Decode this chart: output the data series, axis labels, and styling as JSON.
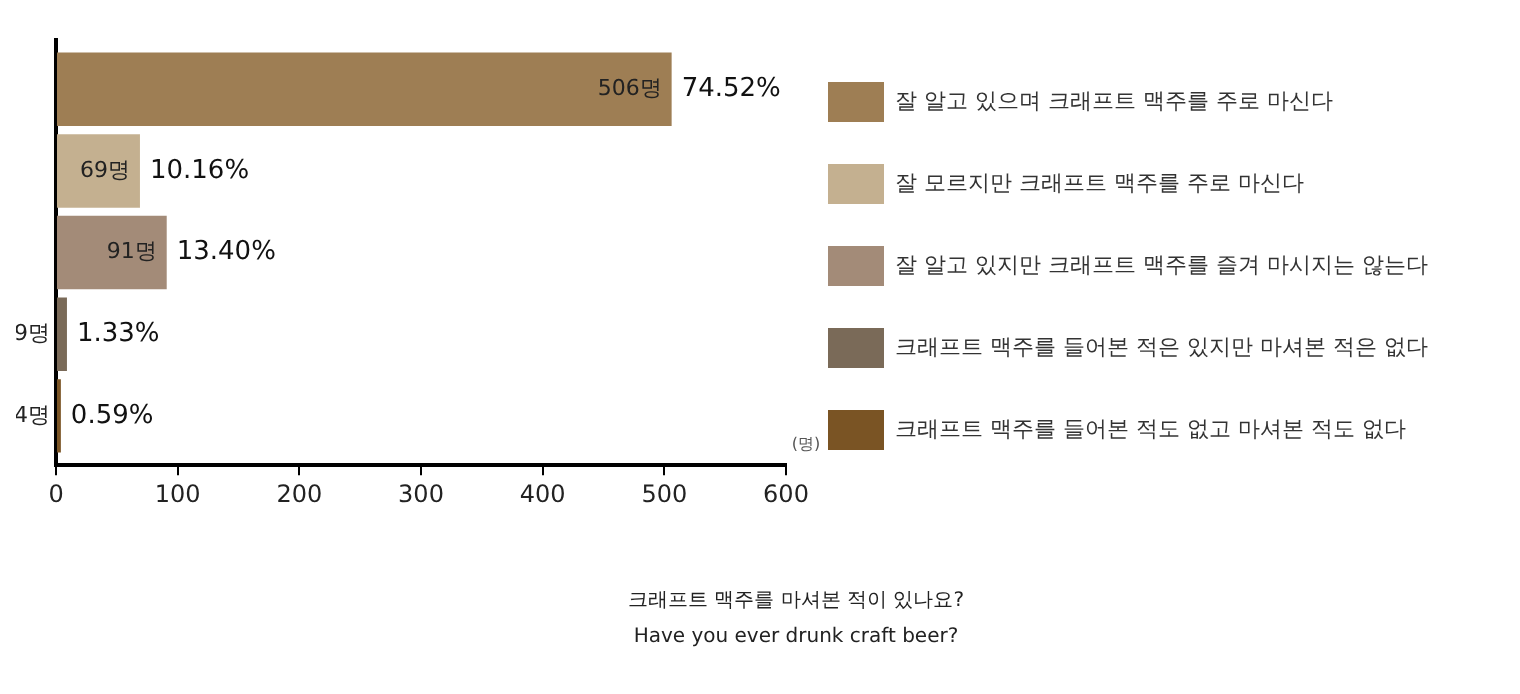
{
  "chart_data": {
    "type": "bar",
    "orientation": "horizontal",
    "title": "크래프트 맥주를 마셔본 적이 있나요?",
    "subtitle": "Have you ever drunk craft beer?",
    "xlabel": "(명)",
    "categories": [
      null
    ],
    "series": [
      {
        "name": "잘 알고 있으며 크래프트 맥주를 주로 마신다",
        "color": "#9e7e54",
        "values": [
          506
        ],
        "value_labels": [
          "506명"
        ]
      },
      {
        "name": "잘 모르지만 크래프트 맥주를 주로 마신다",
        "color": "#c4b090",
        "values": [
          69
        ],
        "value_labels": [
          "69명"
        ]
      },
      {
        "name": "잘 알고 있지만 크래프트 맥주를 즐겨 마시지는 않는다",
        "color": "#a38b78",
        "values": [
          91
        ],
        "value_labels": [
          "91명"
        ]
      },
      {
        "name": "크래프트 맥주를 들어본 적은 있지만 마셔본 적은 없다",
        "color": "#7a6a58",
        "values": [
          9
        ],
        "value_labels": [
          "9명"
        ]
      },
      {
        "name": "크래프트 맥주를 들어본 적도 없고 마셔본 적도 없다",
        "color": "#7a5424",
        "values": [
          4
        ],
        "value_labels": [
          "4명"
        ]
      }
    ],
    "annotations": [
      {
        "text": "74.52%",
        "x": 506
      },
      {
        "text": "10.16%",
        "x": 69
      },
      {
        "text": "13.40%",
        "x": 91
      },
      {
        "text": "1.33%",
        "x": 9
      },
      {
        "text": "0.59%",
        "x": 4
      }
    ],
    "xlim": [
      0,
      600
    ],
    "xticks": [
      0,
      100,
      200,
      300,
      400,
      500,
      600
    ],
    "tick_labels": "x",
    "grid": false,
    "legend": "right"
  }
}
